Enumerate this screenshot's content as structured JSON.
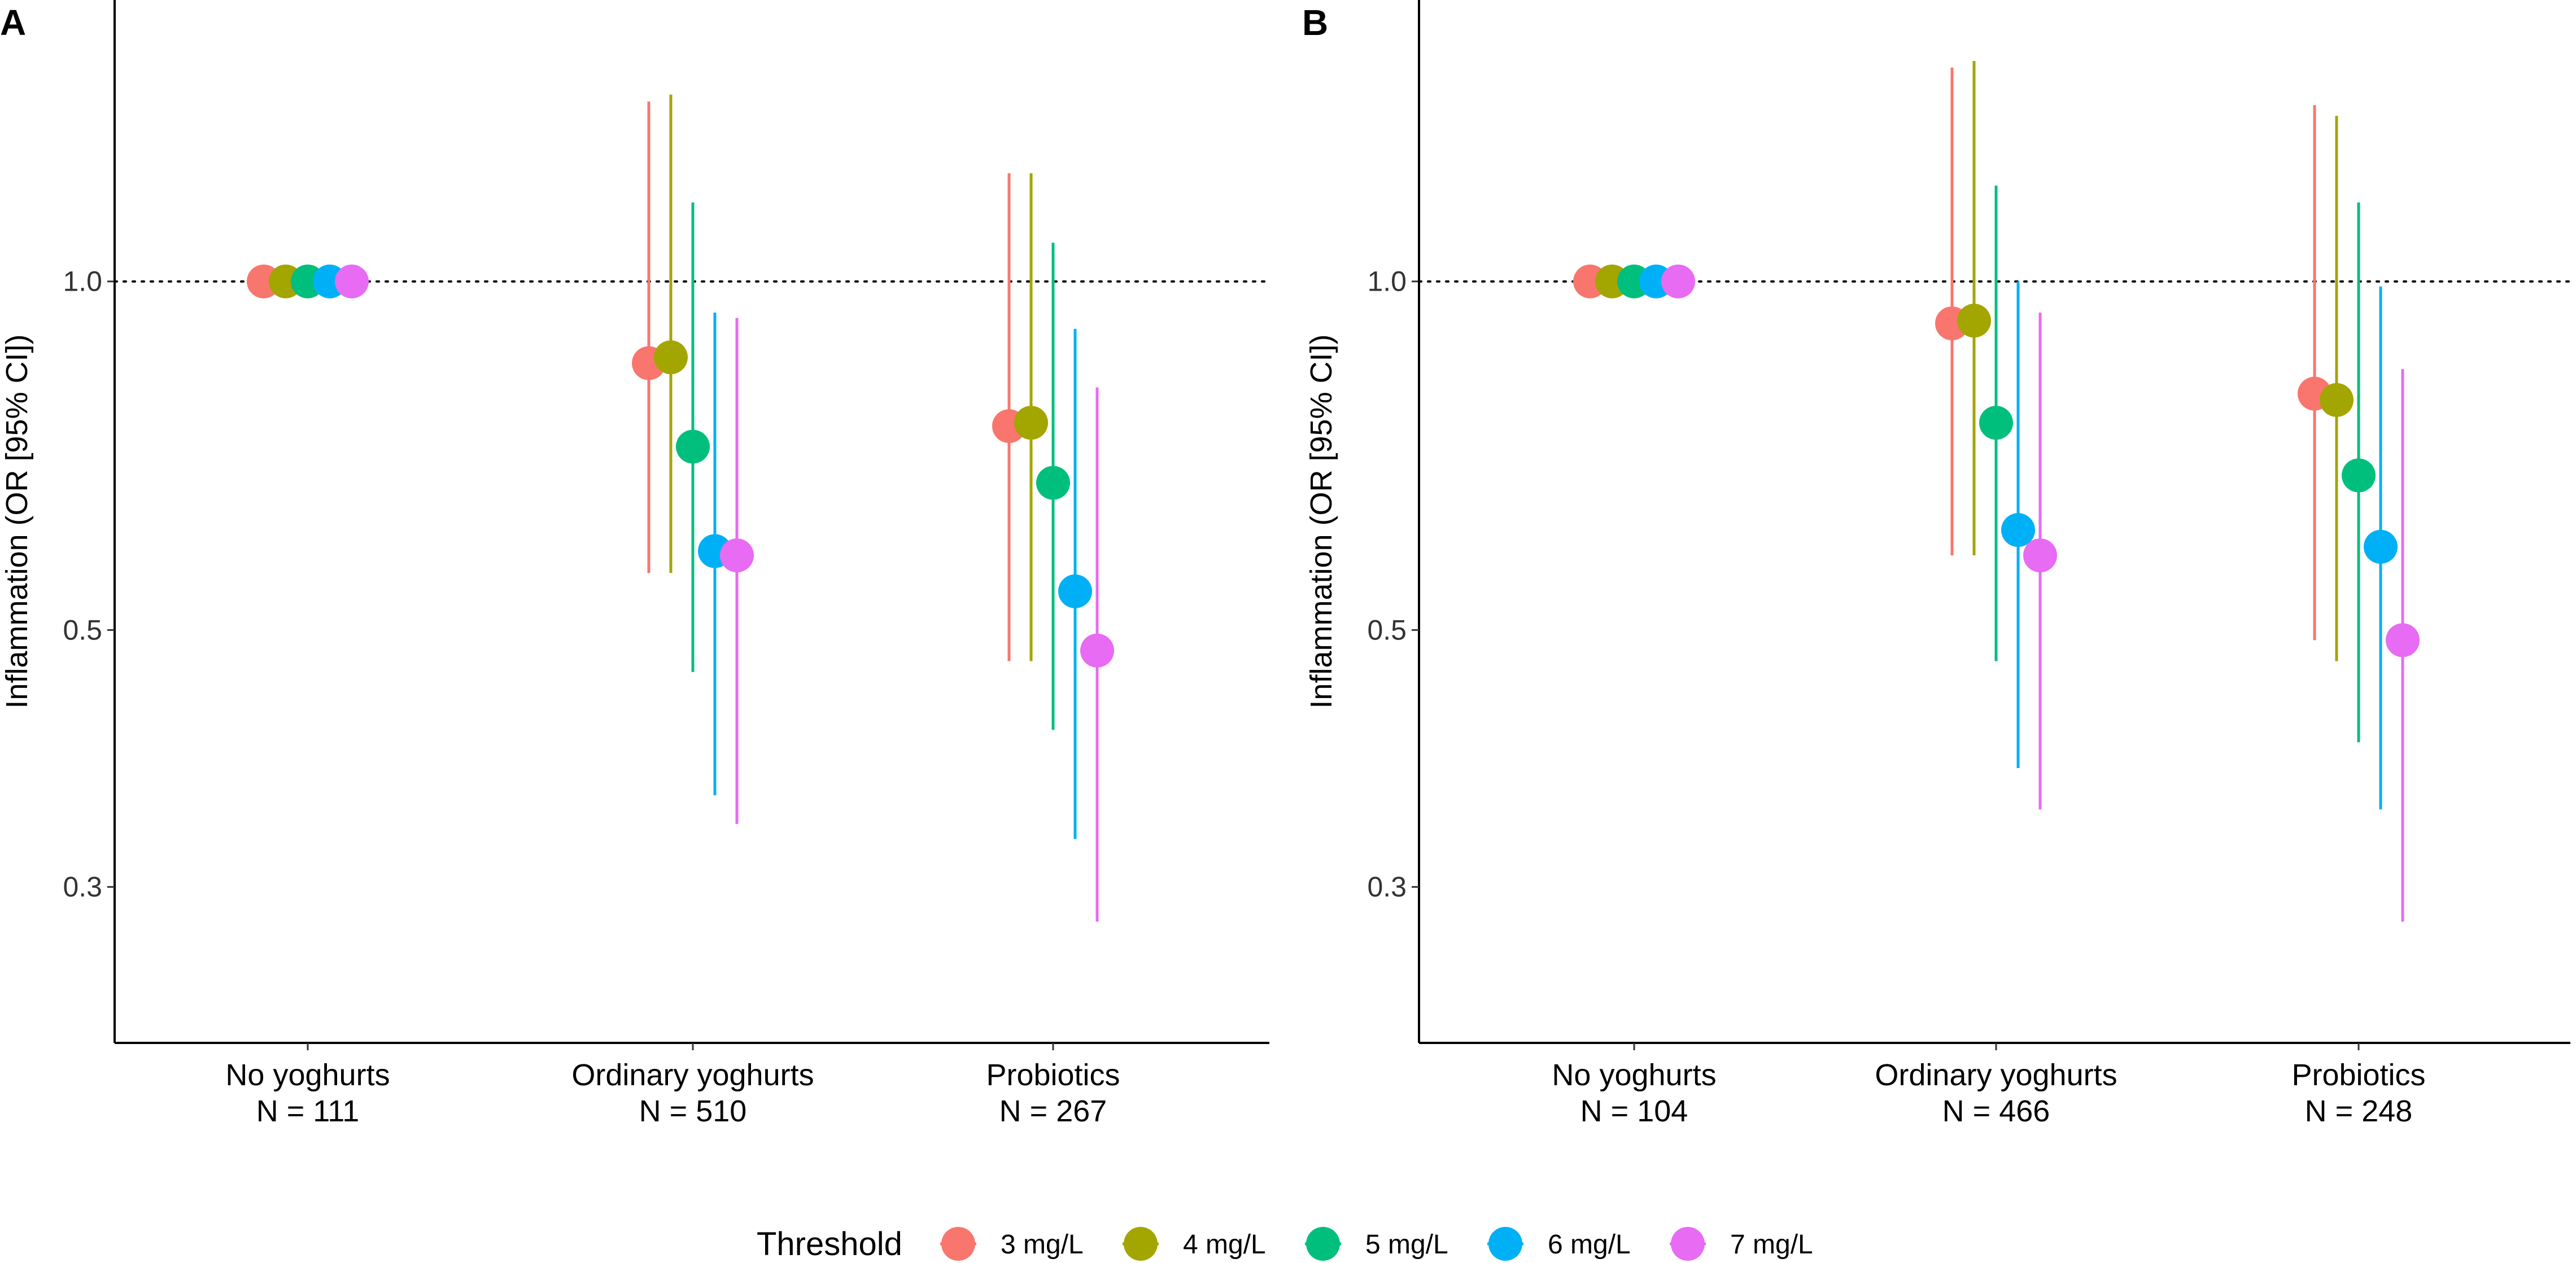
{
  "chart_data": [
    {
      "type": "scatter",
      "panel": "A",
      "title": "",
      "ylabel": "Inflammation (OR [95% CI])",
      "yscale": "log",
      "ylim": [
        0.22,
        1.75
      ],
      "yticks": [
        0.3,
        0.5,
        1.0
      ],
      "ytick_labels": [
        "0.3",
        "0.5",
        "1.0"
      ],
      "reference_line": 1.0,
      "grid": false,
      "categories": [
        "No yoghurts",
        "Ordinary yoghurts",
        "Probiotics"
      ],
      "category_n": [
        "N = 111",
        "N = 510",
        "N = 267"
      ],
      "series": [
        {
          "name": "3 mg/L",
          "or": [
            1.0,
            0.85,
            0.75
          ],
          "ci_low": [
            null,
            0.56,
            0.47
          ],
          "ci_high": [
            null,
            1.43,
            1.24
          ]
        },
        {
          "name": "4 mg/L",
          "or": [
            1.0,
            0.86,
            0.755
          ],
          "ci_low": [
            null,
            0.56,
            0.47
          ],
          "ci_high": [
            null,
            1.45,
            1.24
          ]
        },
        {
          "name": "5 mg/L",
          "or": [
            1.0,
            0.72,
            0.67
          ],
          "ci_low": [
            null,
            0.46,
            0.41
          ],
          "ci_high": [
            null,
            1.17,
            1.08
          ]
        },
        {
          "name": "6 mg/L",
          "or": [
            1.0,
            0.585,
            0.54
          ],
          "ci_low": [
            null,
            0.36,
            0.33
          ],
          "ci_high": [
            null,
            0.94,
            0.91
          ]
        },
        {
          "name": "7 mg/L",
          "or": [
            1.0,
            0.58,
            0.48
          ],
          "ci_low": [
            null,
            0.34,
            0.28
          ],
          "ci_high": [
            null,
            0.93,
            0.81
          ]
        }
      ]
    },
    {
      "type": "scatter",
      "panel": "B",
      "title": "",
      "ylabel": "Inflammation (OR [95% CI])",
      "yscale": "log",
      "ylim": [
        0.22,
        1.75
      ],
      "yticks": [
        0.3,
        0.5,
        1.0
      ],
      "ytick_labels": [
        "0.3",
        "0.5",
        "1.0"
      ],
      "reference_line": 1.0,
      "grid": false,
      "categories": [
        "No yoghurts",
        "Ordinary yoghurts",
        "Probiotics"
      ],
      "category_n": [
        "N = 104",
        "N = 466",
        "N = 248"
      ],
      "series": [
        {
          "name": "3 mg/L",
          "or": [
            1.0,
            0.92,
            0.8
          ],
          "ci_low": [
            null,
            0.58,
            0.49
          ],
          "ci_high": [
            null,
            1.53,
            1.42
          ]
        },
        {
          "name": "4 mg/L",
          "or": [
            1.0,
            0.925,
            0.79
          ],
          "ci_low": [
            null,
            0.58,
            0.47
          ],
          "ci_high": [
            null,
            1.55,
            1.39
          ]
        },
        {
          "name": "5 mg/L",
          "or": [
            1.0,
            0.755,
            0.68
          ],
          "ci_low": [
            null,
            0.47,
            0.4
          ],
          "ci_high": [
            null,
            1.21,
            1.17
          ]
        },
        {
          "name": "6 mg/L",
          "or": [
            1.0,
            0.61,
            0.59
          ],
          "ci_low": [
            null,
            0.38,
            0.35
          ],
          "ci_high": [
            null,
            1.0,
            0.99
          ]
        },
        {
          "name": "7 mg/L",
          "or": [
            1.0,
            0.58,
            0.49
          ],
          "ci_low": [
            null,
            0.35,
            0.28
          ],
          "ci_high": [
            null,
            0.94,
            0.84
          ]
        }
      ]
    }
  ],
  "legend": {
    "title": "Threshold",
    "position": "bottom",
    "items": [
      "3 mg/L",
      "4 mg/L",
      "5 mg/L",
      "6 mg/L",
      "7 mg/L"
    ]
  },
  "colors": {
    "3 mg/L": "#F8766D",
    "4 mg/L": "#A3A500",
    "5 mg/L": "#00BF7D",
    "6 mg/L": "#00B0F6",
    "7 mg/L": "#E76BF3",
    "axis": "#000000",
    "tick": "#333333"
  }
}
